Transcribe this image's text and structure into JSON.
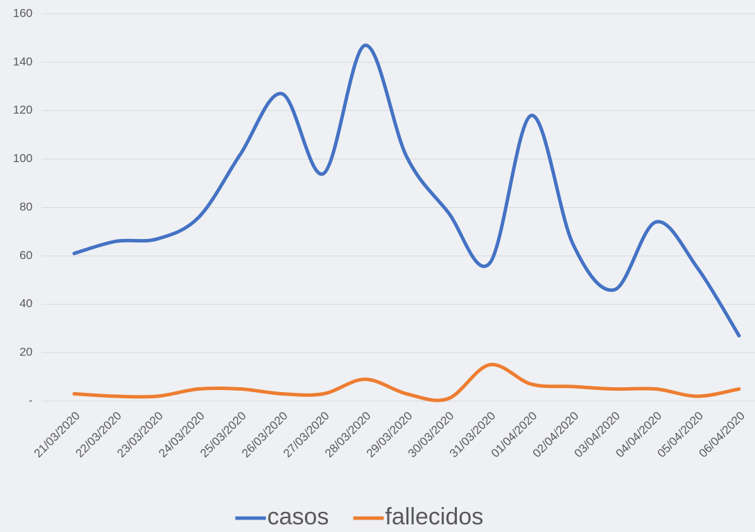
{
  "chart_data": {
    "type": "line",
    "categories": [
      "21/03/2020",
      "22/03/2020",
      "23/03/2020",
      "24/03/2020",
      "25/03/2020",
      "26/03/2020",
      "27/03/2020",
      "28/03/2020",
      "29/03/2020",
      "30/03/2020",
      "31/03/2020",
      "01/04/2020",
      "02/04/2020",
      "03/04/2020",
      "04/04/2020",
      "05/04/2020",
      "06/04/2020"
    ],
    "series": [
      {
        "name": "casos",
        "color": "#4472c4",
        "values": [
          61,
          66,
          67,
          76,
          102,
          127,
          94,
          147,
          101,
          78,
          57,
          118,
          65,
          46,
          74,
          55,
          27
        ]
      },
      {
        "name": "fallecidos",
        "color": "#ed7d31",
        "values": [
          3,
          2,
          2,
          5,
          5,
          3,
          3,
          9,
          3,
          1,
          15,
          7,
          6,
          5,
          5,
          2,
          5
        ]
      }
    ],
    "ylim": [
      0,
      160
    ],
    "yticks": [
      {
        "value": 0,
        "label": "-"
      },
      20,
      40,
      60,
      80,
      100,
      120,
      140,
      160
    ],
    "grid": true,
    "smooth": true,
    "legend": "bottom"
  }
}
